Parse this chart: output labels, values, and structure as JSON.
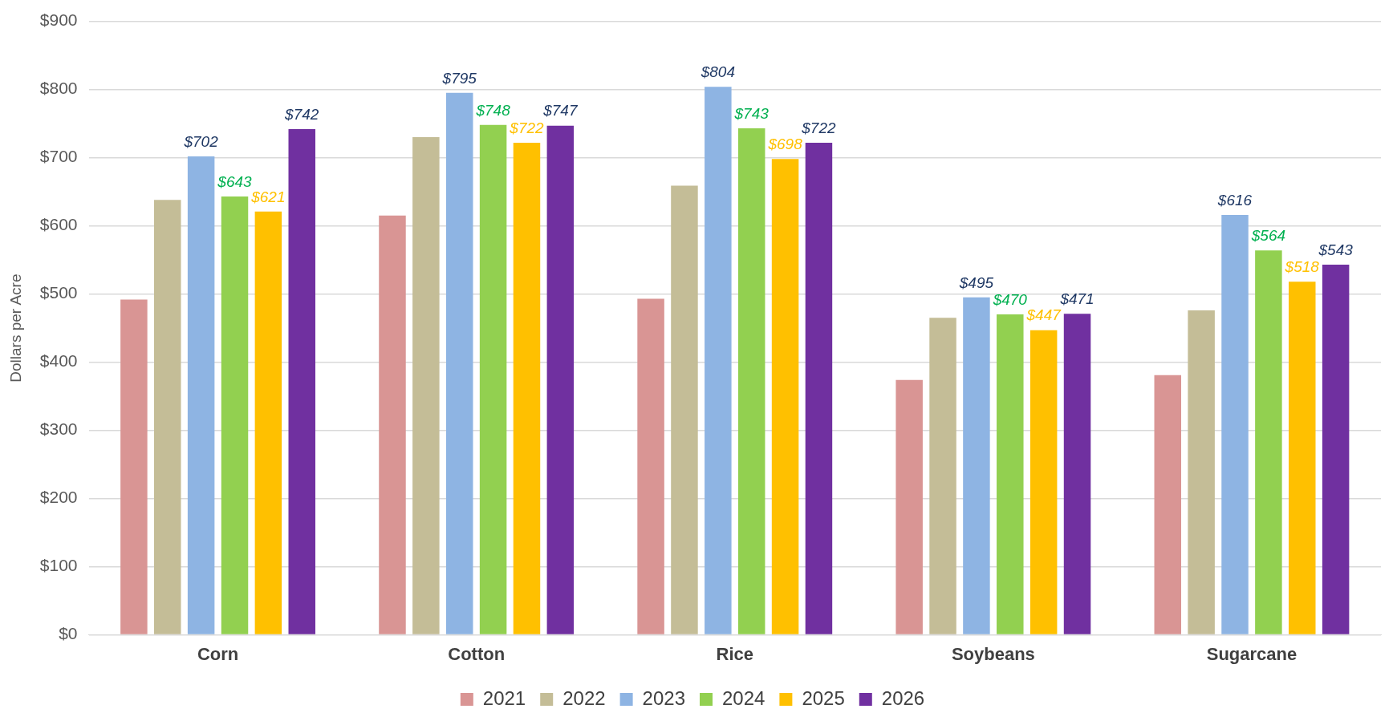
{
  "chart_data": {
    "type": "bar",
    "ylabel": "Dollars per Acre",
    "categories": [
      "Corn",
      "Cotton",
      "Rice",
      "Soybeans",
      "Sugarcane"
    ],
    "series": [
      {
        "name": "2021",
        "color": "#d99594",
        "values": [
          492,
          615,
          493,
          374,
          381
        ]
      },
      {
        "name": "2022",
        "color": "#c4bd97",
        "values": [
          638,
          730,
          659,
          465,
          476
        ]
      },
      {
        "name": "2023",
        "color": "#8eb4e3",
        "values": [
          702,
          795,
          804,
          495,
          616
        ],
        "value_labels": [
          "$702",
          "$795",
          "$804",
          "$495",
          "$616"
        ]
      },
      {
        "name": "2024",
        "color": "#92d050",
        "values": [
          643,
          748,
          743,
          470,
          564
        ],
        "value_labels": [
          "$643",
          "$748",
          "$743",
          "$470",
          "$564"
        ]
      },
      {
        "name": "2025",
        "color": "#ffc000",
        "values": [
          621,
          722,
          698,
          447,
          518
        ],
        "value_labels": [
          "$621",
          "$722",
          "$698",
          "$447",
          "$518"
        ]
      },
      {
        "name": "2026",
        "color": "#7030a0",
        "values": [
          742,
          747,
          722,
          471,
          543
        ],
        "value_labels": [
          "$742",
          "$747",
          "$722",
          "$471",
          "$543"
        ]
      }
    ],
    "ylim": [
      0,
      900
    ],
    "yticks": [
      {
        "value": 0,
        "label": "$0"
      },
      {
        "value": 100,
        "label": "$100"
      },
      {
        "value": 200,
        "label": "$200"
      },
      {
        "value": 300,
        "label": "$300"
      },
      {
        "value": 400,
        "label": "$400"
      },
      {
        "value": 500,
        "label": "$500"
      },
      {
        "value": 600,
        "label": "$600"
      },
      {
        "value": 700,
        "label": "$700"
      },
      {
        "value": 800,
        "label": "$800"
      },
      {
        "value": 900,
        "label": "$900"
      }
    ],
    "grid": "y",
    "legend": "bottom"
  }
}
